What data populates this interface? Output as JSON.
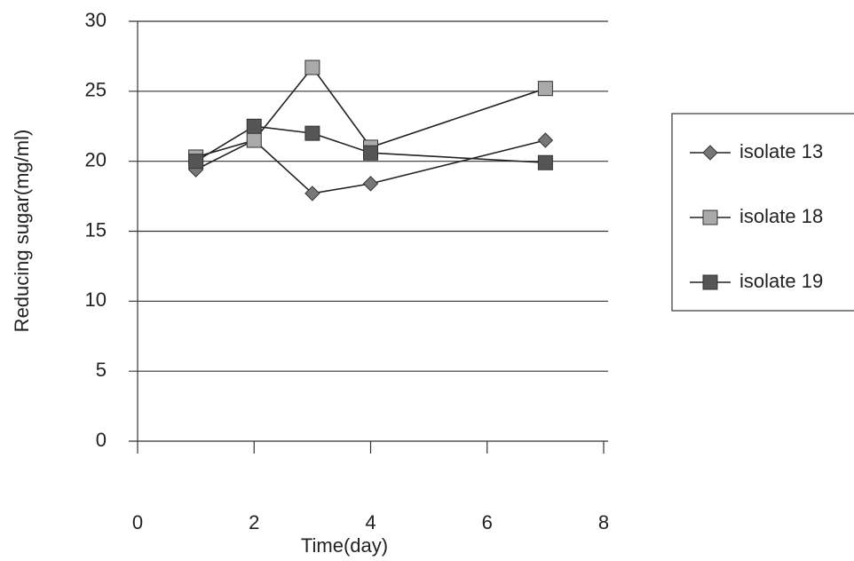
{
  "chart_data": {
    "type": "line",
    "x_label": "Time(day)",
    "y_label": "Reducing sugar(mg/ml)",
    "x": [
      1,
      2,
      3,
      4,
      7
    ],
    "series": [
      {
        "name": "isolate 13",
        "color": "#777777",
        "marker": "diamond",
        "values": [
          19.4,
          21.5,
          17.7,
          18.4,
          21.5
        ]
      },
      {
        "name": "isolate 18",
        "color": "#aaaaaa",
        "marker": "square",
        "values": [
          20.3,
          21.5,
          26.7,
          21.0,
          25.2
        ]
      },
      {
        "name": "isolate 19",
        "color": "#555555",
        "marker": "square",
        "values": [
          20.0,
          22.5,
          22.0,
          20.6,
          19.9
        ]
      }
    ],
    "xlim": [
      0,
      8
    ],
    "xticks": [
      0,
      2,
      4,
      6,
      8
    ],
    "ylim": [
      0,
      30
    ],
    "yticks": [
      0,
      5,
      10,
      15,
      20,
      25,
      30
    ],
    "grid": true,
    "legend": "right"
  }
}
